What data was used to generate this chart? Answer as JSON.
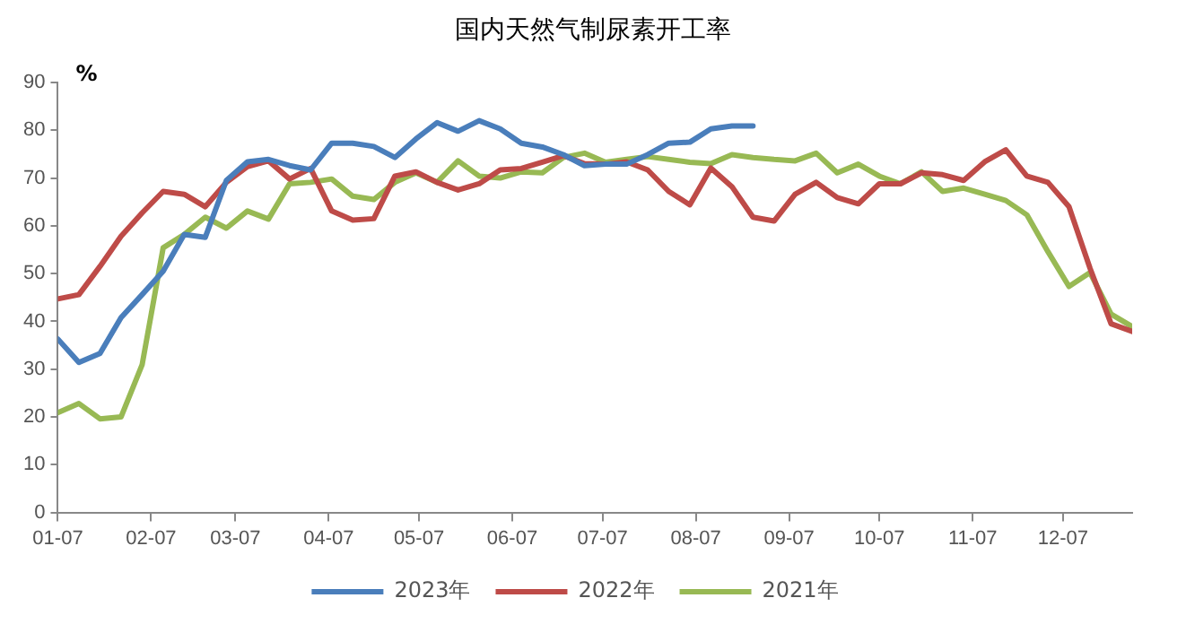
{
  "chart_data": {
    "type": "line",
    "title": "国内天然气制尿素开工率",
    "ylabel": "%",
    "x": [
      "--01-07",
      "--01-14",
      "--01-21",
      "--01-28",
      "--02-04",
      "--02-11",
      "--02-18",
      "--02-25",
      "--03-04",
      "--03-11",
      "--03-18",
      "--03-25",
      "--04-01",
      "--04-08",
      "--04-15",
      "--04-22",
      "--04-29",
      "--05-06",
      "--05-13",
      "--05-20",
      "--05-27",
      "--06-03",
      "--06-10",
      "--06-17",
      "--06-24",
      "--07-01",
      "--07-08",
      "--07-15",
      "--07-22",
      "--07-29",
      "--08-05",
      "--08-12",
      "--08-19",
      "--08-26",
      "--09-02",
      "--09-09",
      "--09-16",
      "--09-23",
      "--09-30",
      "--10-07",
      "--10-14",
      "--10-21",
      "--10-28",
      "--11-04",
      "--11-11",
      "--11-18",
      "--11-25",
      "--12-02",
      "--12-09",
      "--12-16",
      "--12-23",
      "--12-30"
    ],
    "series": [
      {
        "name": "2023年",
        "color": "#4a7ebb",
        "values": [
          36.3,
          31.4,
          33.3,
          40.8,
          45.6,
          50.5,
          58.2,
          57.6,
          69.5,
          73.4,
          73.9,
          72.6,
          71.7,
          77.3,
          77.3,
          76.6,
          74.3,
          78.2,
          81.6,
          79.8,
          82,
          80.3,
          77.3,
          76.5,
          74.9,
          72.6,
          72.9,
          72.9,
          74.9,
          77.3,
          77.5,
          80.3,
          80.9,
          80.9,
          null,
          null,
          null,
          null,
          null,
          null,
          null,
          null,
          null,
          null,
          null,
          null,
          null,
          null,
          null,
          null,
          null,
          null
        ]
      },
      {
        "name": "2022年",
        "color": "#be4b48",
        "values": [
          44.7,
          45.6,
          51.5,
          57.8,
          62.7,
          67.2,
          66.6,
          64,
          69.1,
          72.4,
          73.6,
          69.8,
          72,
          63.1,
          61.2,
          61.5,
          70.4,
          71.3,
          69.1,
          67.5,
          68.8,
          71.7,
          72,
          73.3,
          74.7,
          73,
          72.9,
          73.4,
          71.7,
          67.2,
          64.4,
          72.1,
          68.2,
          61.8,
          61,
          66.6,
          69.1,
          65.9,
          64.6,
          68.8,
          68.8,
          71.1,
          70.7,
          69.5,
          73.4,
          75.9,
          70.4,
          69.1,
          64,
          51.1,
          39.5,
          37.9
        ]
      },
      {
        "name": "2021年",
        "color": "#98b954",
        "values": [
          20.9,
          22.8,
          19.6,
          20,
          30.9,
          55.4,
          58.2,
          61.8,
          59.5,
          63.1,
          61.4,
          68.8,
          69.1,
          69.8,
          66.2,
          65.5,
          69.1,
          71.1,
          69.1,
          73.6,
          70.4,
          70,
          71.3,
          71.1,
          74.3,
          75.2,
          73.3,
          73.9,
          74.5,
          73.9,
          73.3,
          73,
          74.9,
          74.3,
          73.9,
          73.6,
          75.2,
          71.1,
          72.9,
          70.4,
          68.8,
          71.3,
          67.2,
          67.9,
          66.6,
          65.3,
          62.3,
          54.6,
          47.3,
          50.2,
          41.5,
          38.9
        ]
      }
    ],
    "xlim": [
      "--01-07",
      "--12-30"
    ],
    "xticks": [
      {
        "value": "--01-07",
        "label": "01-07"
      },
      {
        "value": "--02-07",
        "label": "02-07"
      },
      {
        "value": "--03-07",
        "label": "03-07"
      },
      {
        "value": "--04-07",
        "label": "04-07"
      },
      {
        "value": "--05-07",
        "label": "05-07"
      },
      {
        "value": "--06-07",
        "label": "06-07"
      },
      {
        "value": "--07-07",
        "label": "07-07"
      },
      {
        "value": "--08-07",
        "label": "08-07"
      },
      {
        "value": "--09-07",
        "label": "09-07"
      },
      {
        "value": "--10-07",
        "label": "10-07"
      },
      {
        "value": "--11-07",
        "label": "11-07"
      },
      {
        "value": "--12-07",
        "label": "12-07"
      }
    ],
    "ylim": [
      0,
      90
    ],
    "yticks": [
      0,
      10,
      20,
      30,
      40,
      50,
      60,
      70,
      80,
      90
    ],
    "grid": false,
    "legend": "bottom",
    "marker": "none",
    "line_style": "solid"
  }
}
